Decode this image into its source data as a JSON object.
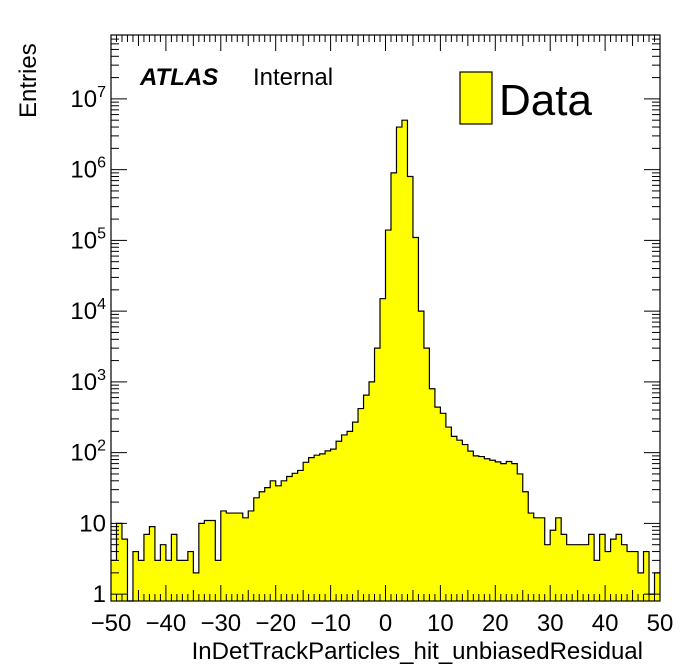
{
  "chart_data": {
    "type": "bar",
    "xlabel": "InDetTrackParticles_hit_unbiasedResidual",
    "ylabel": "Entries",
    "xlim": [
      -50,
      50
    ],
    "ylim": [
      0.8,
      80000000
    ],
    "yscale": "log",
    "grid": false,
    "legend_position": "top-right",
    "atlas_label": "ATLAS",
    "internal_label": "Internal",
    "x_tick_labels": [
      "−50",
      "−40",
      "−30",
      "−20",
      "−10",
      "0",
      "10",
      "20",
      "30",
      "40",
      "50"
    ],
    "x_ticks": [
      -50,
      -40,
      -30,
      -20,
      -10,
      0,
      10,
      20,
      30,
      40,
      50
    ],
    "y_tick_labels": [
      {
        "value": 1,
        "base": "1",
        "exp": ""
      },
      {
        "value": 10,
        "base": "10",
        "exp": ""
      },
      {
        "value": 100,
        "base": "10",
        "exp": "2"
      },
      {
        "value": 1000,
        "base": "10",
        "exp": "3"
      },
      {
        "value": 10000,
        "base": "10",
        "exp": "4"
      },
      {
        "value": 100000,
        "base": "10",
        "exp": "5"
      },
      {
        "value": 1000000,
        "base": "10",
        "exp": "6"
      },
      {
        "value": 10000000,
        "base": "10",
        "exp": "7"
      }
    ],
    "series": [
      {
        "name": "Data",
        "color": "#ffff00",
        "edge_color": "#000000",
        "bin_low": -50,
        "bin_width": 1,
        "values": [
          3,
          10,
          6,
          0,
          4,
          3,
          7,
          9,
          3,
          5,
          3,
          7,
          3,
          3,
          4,
          2,
          10,
          11,
          11,
          3,
          15,
          14,
          14,
          14,
          12,
          15,
          23,
          28,
          32,
          40,
          34,
          40,
          46,
          51,
          56,
          73,
          85,
          92,
          96,
          106,
          112,
          145,
          178,
          200,
          270,
          420,
          650,
          1000,
          3000,
          15000,
          140000,
          900000,
          4000000,
          5000000,
          800000,
          110000,
          10000,
          3000,
          800,
          440,
          360,
          230,
          170,
          150,
          130,
          105,
          90,
          88,
          82,
          78,
          74,
          70,
          75,
          70,
          50,
          28,
          14,
          12,
          12,
          5,
          8,
          12,
          7,
          5,
          5,
          5,
          5,
          7,
          3,
          7,
          4,
          6,
          7,
          5,
          4,
          4,
          2,
          4,
          1,
          2
        ]
      }
    ]
  }
}
